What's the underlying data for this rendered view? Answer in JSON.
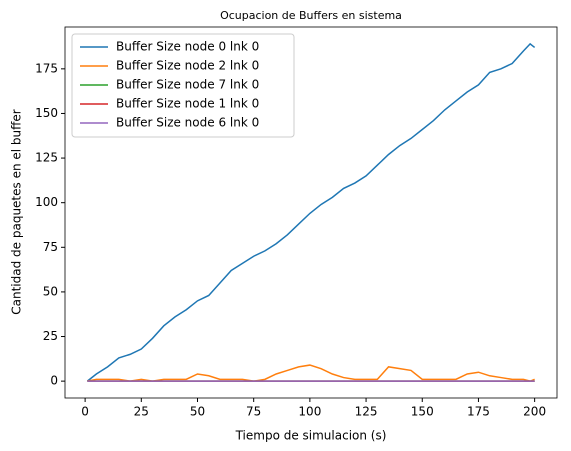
{
  "chart_data": {
    "type": "line",
    "title": "Ocupacion de Buffers en sistema",
    "x_label": "Tiempo de simulacion (s)",
    "y_label": "Cantidad de paquetes en el buffer",
    "x": [
      1,
      5,
      10,
      15,
      20,
      25,
      30,
      35,
      40,
      45,
      50,
      55,
      60,
      65,
      70,
      75,
      80,
      85,
      90,
      95,
      100,
      105,
      110,
      115,
      120,
      125,
      130,
      135,
      140,
      145,
      150,
      155,
      160,
      165,
      170,
      175,
      180,
      185,
      190,
      195,
      198,
      200
    ],
    "series": [
      {
        "name": "Buffer Size node 0 lnk 0",
        "color": "#1f77b4",
        "values": [
          0,
          4,
          8,
          13,
          15,
          18,
          24,
          31,
          36,
          40,
          45,
          48,
          55,
          62,
          66,
          70,
          73,
          77,
          82,
          88,
          94,
          99,
          103,
          108,
          111,
          115,
          121,
          127,
          132,
          136,
          141,
          146,
          152,
          157,
          162,
          166,
          173,
          175,
          178,
          185,
          189,
          187
        ]
      },
      {
        "name": "Buffer Size node 2 lnk 0",
        "color": "#ff7f0e",
        "values": [
          0,
          1,
          1,
          1,
          0,
          1,
          0,
          1,
          1,
          1,
          4,
          3,
          1,
          1,
          1,
          0,
          1,
          4,
          6,
          8,
          9,
          7,
          4,
          2,
          1,
          1,
          1,
          8,
          7,
          6,
          1,
          1,
          1,
          1,
          4,
          5,
          3,
          2,
          1,
          1,
          0,
          1
        ]
      },
      {
        "name": "Buffer Size node 7 lnk 0",
        "color": "#2ca02c",
        "values": [
          0,
          0,
          0,
          0,
          0,
          0,
          0,
          0,
          0,
          0,
          0,
          0,
          0,
          0,
          0,
          0,
          0,
          0,
          0,
          0,
          0,
          0,
          0,
          0,
          0,
          0,
          0,
          0,
          0,
          0,
          0,
          0,
          0,
          0,
          0,
          0,
          0,
          0,
          0,
          0,
          0,
          0
        ]
      },
      {
        "name": "Buffer Size node 1 lnk 0",
        "color": "#d62728",
        "values": [
          0,
          0,
          0,
          0,
          0,
          0,
          0,
          0,
          0,
          0,
          0,
          0,
          0,
          0,
          0,
          0,
          0,
          0,
          0,
          0,
          0,
          0,
          0,
          0,
          0,
          0,
          0,
          0,
          0,
          0,
          0,
          0,
          0,
          0,
          0,
          0,
          0,
          0,
          0,
          0,
          0,
          0
        ]
      },
      {
        "name": "Buffer Size node 6 lnk 0",
        "color": "#9467bd",
        "values": [
          0,
          0,
          0,
          0,
          0,
          0,
          0,
          0,
          0,
          0,
          0,
          0,
          0,
          0,
          0,
          0,
          0,
          0,
          0,
          0,
          0,
          0,
          0,
          0,
          0,
          0,
          0,
          0,
          0,
          0,
          0,
          0,
          0,
          0,
          0,
          0,
          0,
          0,
          0,
          0,
          0,
          0
        ]
      }
    ],
    "xlim": [
      -8.95,
      209.95
    ],
    "xticks": [
      0,
      25,
      50,
      75,
      100,
      125,
      150,
      175,
      200
    ],
    "ylim": [
      -9.45,
      198.45
    ],
    "yticks": [
      0,
      25,
      50,
      75,
      100,
      125,
      150,
      175
    ],
    "legend": "upper left"
  }
}
